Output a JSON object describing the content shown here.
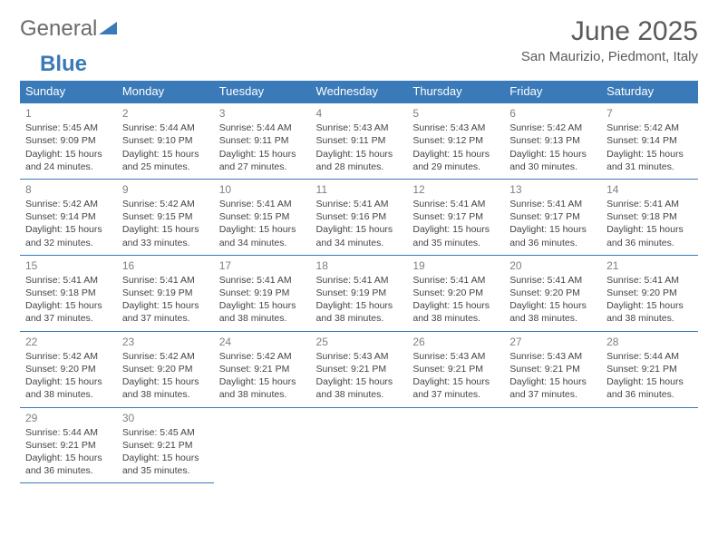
{
  "brand": {
    "part1": "General",
    "part2": "Blue"
  },
  "title": "June 2025",
  "location": "San Maurizio, Piedmont, Italy",
  "colors": {
    "header_bg": "#3a7ab8",
    "header_text": "#ffffff",
    "rule": "#3a7ab8",
    "text": "#444444",
    "daynum": "#808080",
    "title_color": "#5a5a5a"
  },
  "day_headers": [
    "Sunday",
    "Monday",
    "Tuesday",
    "Wednesday",
    "Thursday",
    "Friday",
    "Saturday"
  ],
  "weeks": [
    [
      {
        "n": "1",
        "sr": "5:45 AM",
        "ss": "9:09 PM",
        "dl": "15 hours and 24 minutes."
      },
      {
        "n": "2",
        "sr": "5:44 AM",
        "ss": "9:10 PM",
        "dl": "15 hours and 25 minutes."
      },
      {
        "n": "3",
        "sr": "5:44 AM",
        "ss": "9:11 PM",
        "dl": "15 hours and 27 minutes."
      },
      {
        "n": "4",
        "sr": "5:43 AM",
        "ss": "9:11 PM",
        "dl": "15 hours and 28 minutes."
      },
      {
        "n": "5",
        "sr": "5:43 AM",
        "ss": "9:12 PM",
        "dl": "15 hours and 29 minutes."
      },
      {
        "n": "6",
        "sr": "5:42 AM",
        "ss": "9:13 PM",
        "dl": "15 hours and 30 minutes."
      },
      {
        "n": "7",
        "sr": "5:42 AM",
        "ss": "9:14 PM",
        "dl": "15 hours and 31 minutes."
      }
    ],
    [
      {
        "n": "8",
        "sr": "5:42 AM",
        "ss": "9:14 PM",
        "dl": "15 hours and 32 minutes."
      },
      {
        "n": "9",
        "sr": "5:42 AM",
        "ss": "9:15 PM",
        "dl": "15 hours and 33 minutes."
      },
      {
        "n": "10",
        "sr": "5:41 AM",
        "ss": "9:15 PM",
        "dl": "15 hours and 34 minutes."
      },
      {
        "n": "11",
        "sr": "5:41 AM",
        "ss": "9:16 PM",
        "dl": "15 hours and 34 minutes."
      },
      {
        "n": "12",
        "sr": "5:41 AM",
        "ss": "9:17 PM",
        "dl": "15 hours and 35 minutes."
      },
      {
        "n": "13",
        "sr": "5:41 AM",
        "ss": "9:17 PM",
        "dl": "15 hours and 36 minutes."
      },
      {
        "n": "14",
        "sr": "5:41 AM",
        "ss": "9:18 PM",
        "dl": "15 hours and 36 minutes."
      }
    ],
    [
      {
        "n": "15",
        "sr": "5:41 AM",
        "ss": "9:18 PM",
        "dl": "15 hours and 37 minutes."
      },
      {
        "n": "16",
        "sr": "5:41 AM",
        "ss": "9:19 PM",
        "dl": "15 hours and 37 minutes."
      },
      {
        "n": "17",
        "sr": "5:41 AM",
        "ss": "9:19 PM",
        "dl": "15 hours and 38 minutes."
      },
      {
        "n": "18",
        "sr": "5:41 AM",
        "ss": "9:19 PM",
        "dl": "15 hours and 38 minutes."
      },
      {
        "n": "19",
        "sr": "5:41 AM",
        "ss": "9:20 PM",
        "dl": "15 hours and 38 minutes."
      },
      {
        "n": "20",
        "sr": "5:41 AM",
        "ss": "9:20 PM",
        "dl": "15 hours and 38 minutes."
      },
      {
        "n": "21",
        "sr": "5:41 AM",
        "ss": "9:20 PM",
        "dl": "15 hours and 38 minutes."
      }
    ],
    [
      {
        "n": "22",
        "sr": "5:42 AM",
        "ss": "9:20 PM",
        "dl": "15 hours and 38 minutes."
      },
      {
        "n": "23",
        "sr": "5:42 AM",
        "ss": "9:20 PM",
        "dl": "15 hours and 38 minutes."
      },
      {
        "n": "24",
        "sr": "5:42 AM",
        "ss": "9:21 PM",
        "dl": "15 hours and 38 minutes."
      },
      {
        "n": "25",
        "sr": "5:43 AM",
        "ss": "9:21 PM",
        "dl": "15 hours and 38 minutes."
      },
      {
        "n": "26",
        "sr": "5:43 AM",
        "ss": "9:21 PM",
        "dl": "15 hours and 37 minutes."
      },
      {
        "n": "27",
        "sr": "5:43 AM",
        "ss": "9:21 PM",
        "dl": "15 hours and 37 minutes."
      },
      {
        "n": "28",
        "sr": "5:44 AM",
        "ss": "9:21 PM",
        "dl": "15 hours and 36 minutes."
      }
    ],
    [
      {
        "n": "29",
        "sr": "5:44 AM",
        "ss": "9:21 PM",
        "dl": "15 hours and 36 minutes."
      },
      {
        "n": "30",
        "sr": "5:45 AM",
        "ss": "9:21 PM",
        "dl": "15 hours and 35 minutes."
      },
      null,
      null,
      null,
      null,
      null
    ]
  ],
  "labels": {
    "sunrise": "Sunrise: ",
    "sunset": "Sunset: ",
    "daylight": "Daylight: "
  }
}
